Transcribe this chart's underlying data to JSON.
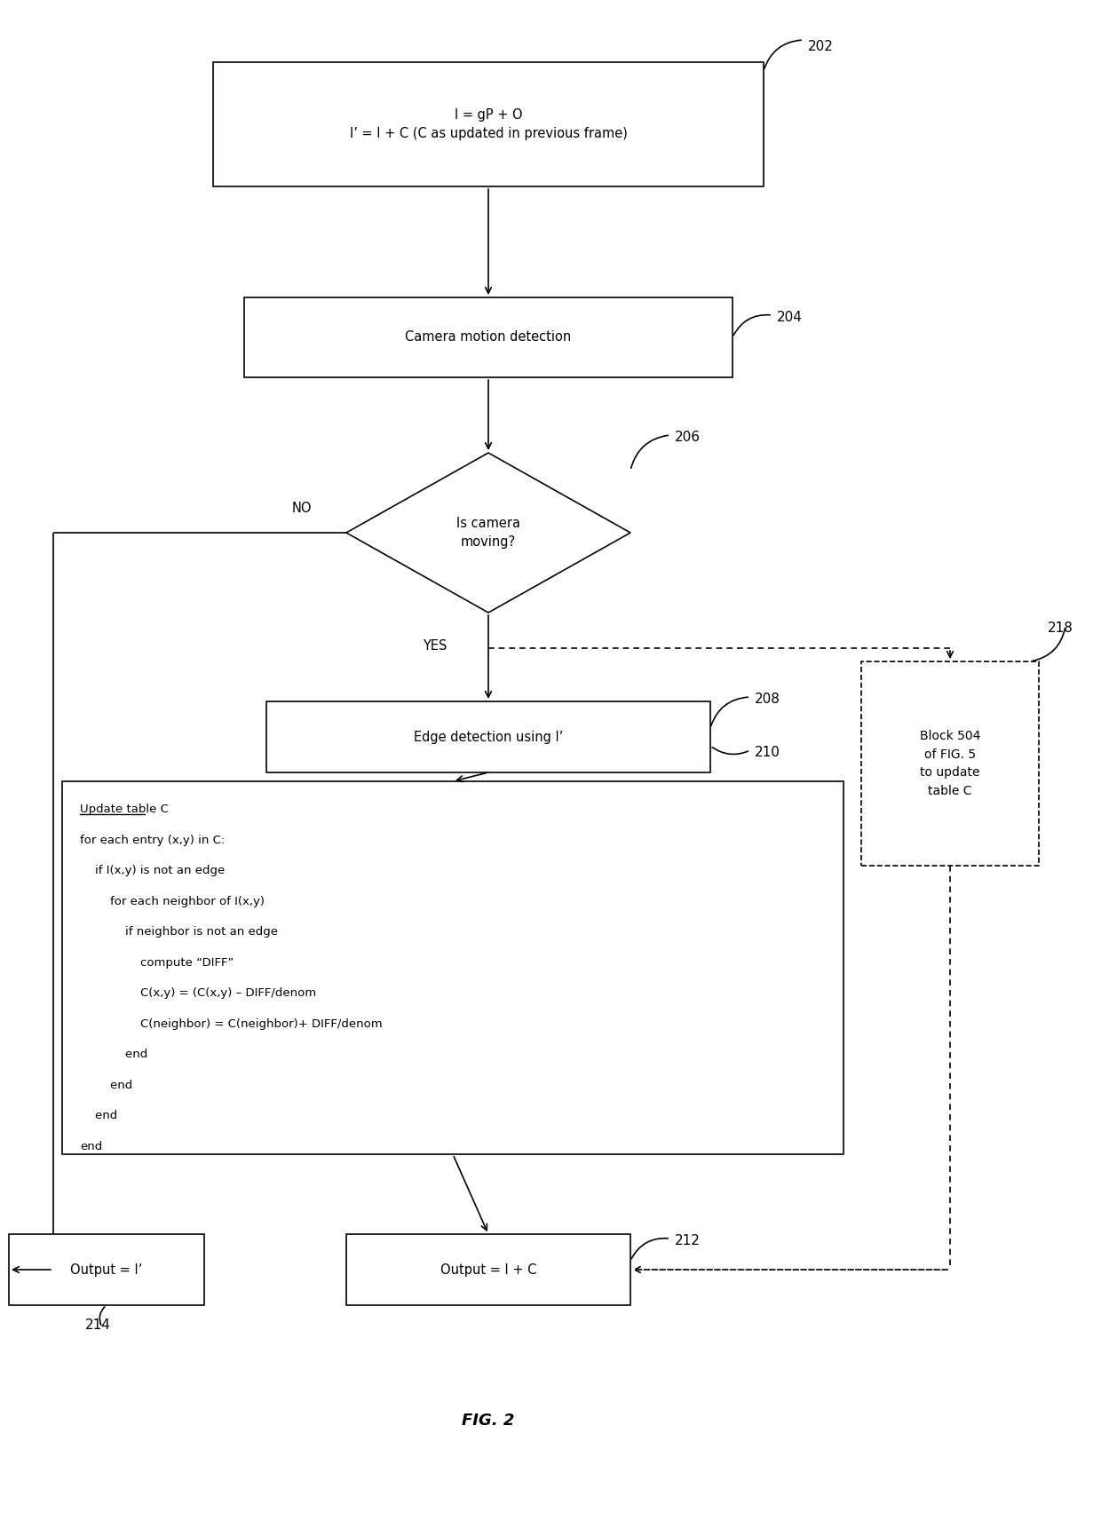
{
  "fig_width": 12.4,
  "fig_height": 17.3,
  "bg_color": "#ffffff",
  "title": "FIG. 2",
  "box202_text": "I = gP + O\nI’ = I + C (C as updated in previous frame)",
  "box204_text": "Camera motion detection",
  "diamond206_text": "Is camera\nmoving?",
  "box208_text": "Edge detection using I’",
  "box212_text": "Output = I + C",
  "box214_text": "Output = I’",
  "box218_text": "Block 504\nof FIG. 5\nto update\ntable C",
  "label202": "202",
  "label204": "204",
  "label206": "206",
  "label208": "208",
  "label210": "210",
  "label212": "212",
  "label214": "214",
  "label218": "218",
  "no_label": "NO",
  "yes_label": "YES",
  "line_color": "#000000",
  "font_family": "DejaVu Sans",
  "text210_lines": [
    [
      "Update table C",
      true
    ],
    [
      "for each entry (x,y) in C:",
      false
    ],
    [
      "    if I(x,y) is not an edge",
      false
    ],
    [
      "        for each neighbor of I(x,y)",
      false
    ],
    [
      "            if neighbor is not an edge",
      false
    ],
    [
      "                compute “DIFF”",
      false
    ],
    [
      "                C(x,y) = (C(x,y) – DIFF/denom",
      false
    ],
    [
      "                C(neighbor) = C(neighbor)+ DIFF/denom",
      false
    ],
    [
      "            end",
      false
    ],
    [
      "        end",
      false
    ],
    [
      "    end",
      false
    ],
    [
      "end",
      false
    ]
  ]
}
